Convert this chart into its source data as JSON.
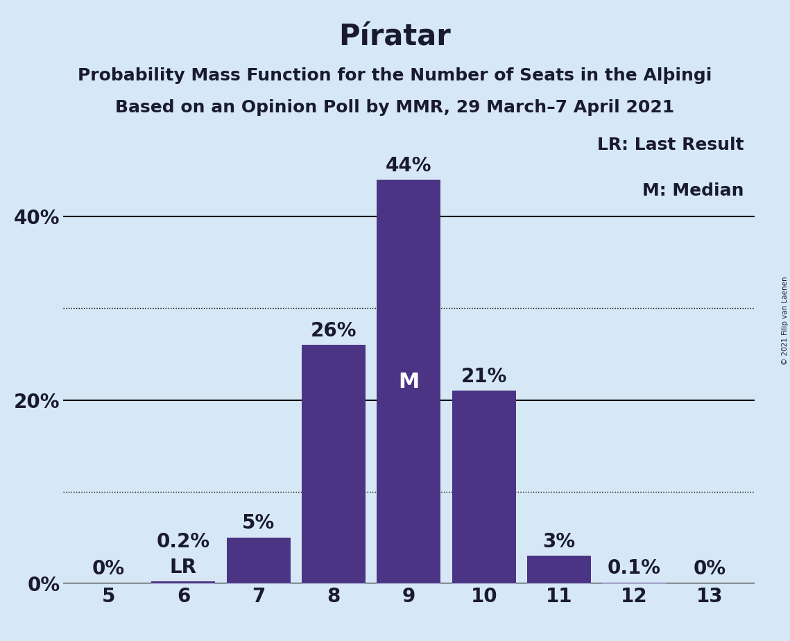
{
  "title": "Píratar",
  "subtitle1": "Probability Mass Function for the Number of Seats in the Alþingi",
  "subtitle2": "Based on an Opinion Poll by MMR, 29 March–7 April 2021",
  "copyright": "© 2021 Filip van Laenen",
  "legend_lr": "LR: Last Result",
  "legend_m": "M: Median",
  "categories": [
    5,
    6,
    7,
    8,
    9,
    10,
    11,
    12,
    13
  ],
  "values": [
    0.0,
    0.2,
    5.0,
    26.0,
    44.0,
    21.0,
    3.0,
    0.1,
    0.0
  ],
  "bar_color": "#4B3484",
  "background_color": "#D6E8F5",
  "plot_bg_color": "#D6E8F5",
  "text_color": "#1a1a2e",
  "label_color_dark": "#1a1a2e",
  "label_color_white": "#ffffff",
  "ylim": [
    0,
    50
  ],
  "yticks": [
    0,
    10,
    20,
    30,
    40,
    50
  ],
  "solid_gridlines": [
    0,
    20,
    40
  ],
  "dotted_gridlines": [
    10,
    30
  ],
  "last_result_seat": 6,
  "median_seat": 9,
  "bar_labels": [
    "0%",
    "0.2%",
    "5%",
    "26%",
    "44%",
    "21%",
    "3%",
    "0.1%",
    "0%"
  ],
  "white_label_threshold": 15,
  "title_fontsize": 30,
  "subtitle_fontsize": 18,
  "axis_tick_fontsize": 20,
  "bar_label_fontsize": 20,
  "legend_fontsize": 18
}
